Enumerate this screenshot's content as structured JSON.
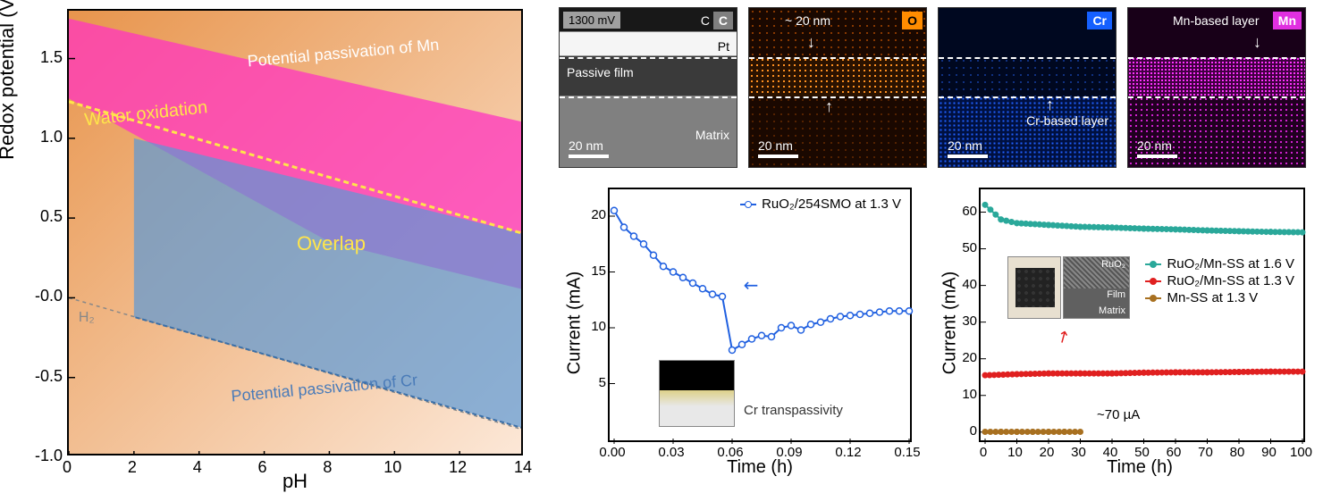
{
  "pourbaix": {
    "ylabel": "Redox potential (V)",
    "xlabel": "pH",
    "xlim": [
      0,
      14
    ],
    "ylim": [
      -1.0,
      1.8
    ],
    "yticks": [
      -1.0,
      -0.5,
      -0.0,
      0.5,
      1.0,
      1.5
    ],
    "xticks": [
      0,
      2,
      4,
      6,
      8,
      10,
      12,
      14
    ],
    "yticklabels": [
      "-1.0",
      "-0.5",
      "-0.0",
      "0.5",
      "1.0",
      "1.5"
    ],
    "xticklabels": [
      "0",
      "2",
      "4",
      "6",
      "8",
      "10",
      "12",
      "14"
    ],
    "background_gradient": [
      "#e8954d",
      "#fce8d8"
    ],
    "mn_region_color": "#ff34c0",
    "mn_region_opacity": 0.75,
    "mn_region_points": [
      [
        0,
        1.75
      ],
      [
        14,
        1.1
      ],
      [
        14,
        0.05
      ],
      [
        8,
        0.35
      ],
      [
        0,
        1.25
      ]
    ],
    "cr_region_color": "#5b98d6",
    "cr_region_opacity": 0.7,
    "cr_region_points": [
      [
        2,
        1.0
      ],
      [
        14,
        0.4
      ],
      [
        14,
        -0.82
      ],
      [
        2,
        -0.12
      ]
    ],
    "overlap_color": "#9b3fd8",
    "water_ox_line": {
      "p1": [
        0,
        1.23
      ],
      "p2": [
        14,
        0.4
      ],
      "color": "#ffe54a",
      "dash": "6,4",
      "width": 3
    },
    "h2_line": {
      "p1": [
        0,
        0.0
      ],
      "p2": [
        14,
        -0.83
      ],
      "color": "#888888",
      "dash": "4,4",
      "width": 1.5
    },
    "labels": {
      "mn": "Potential passivation of Mn",
      "cr": "Potential passivation of Cr",
      "water": "Water oxidation",
      "overlap": "Overlap",
      "h2": "H₂"
    },
    "label_colors": {
      "mn": "#ffffff",
      "cr": "#4a7bb8",
      "water": "#ffe54a",
      "overlap": "#ffe54a",
      "h2": "#888888"
    }
  },
  "eds": {
    "panels": [
      {
        "element": "C",
        "tag_bg": "#808080",
        "topleft_text": "1300 mV",
        "layers": [
          "C",
          "Pt",
          "Passive film",
          "Matrix"
        ],
        "scale": "20 nm"
      },
      {
        "element": "O",
        "tag_bg": "#ff8c00",
        "top_text": "~ 20 nm",
        "scale": "20 nm",
        "band_color": "#ff8c1a"
      },
      {
        "element": "Cr",
        "tag_bg": "#1560ff",
        "bottom_text": "Cr-based layer",
        "scale": "20 nm",
        "fill_color": "#1e5bd8"
      },
      {
        "element": "Mn",
        "tag_bg": "#e030e0",
        "top_text": "Mn-based layer",
        "scale": "20 nm",
        "fill_color": "#d428d4"
      }
    ]
  },
  "chart_b": {
    "ylabel": "Current (mA)",
    "xlabel": "Time (h)",
    "xlim": [
      0.0,
      0.15
    ],
    "ylim": [
      0,
      22
    ],
    "xticks": [
      0.0,
      0.03,
      0.06,
      0.09,
      0.12,
      0.15
    ],
    "yticks": [
      5,
      10,
      15,
      20
    ],
    "xticklabels": [
      "0.00",
      "0.03",
      "0.06",
      "0.09",
      "0.12",
      "0.15"
    ],
    "yticklabels": [
      "5",
      "10",
      "15",
      "20"
    ],
    "series": {
      "label": "RuO₂/254SMO at 1.3 V",
      "color": "#2060e0",
      "marker": "circle",
      "data": [
        [
          0,
          20.5
        ],
        [
          0.005,
          19
        ],
        [
          0.01,
          18.2
        ],
        [
          0.015,
          17.5
        ],
        [
          0.02,
          16.5
        ],
        [
          0.025,
          15.5
        ],
        [
          0.03,
          15
        ],
        [
          0.035,
          14.5
        ],
        [
          0.04,
          14
        ],
        [
          0.045,
          13.5
        ],
        [
          0.05,
          13
        ],
        [
          0.055,
          12.8
        ],
        [
          0.06,
          8
        ],
        [
          0.065,
          8.5
        ],
        [
          0.07,
          9
        ],
        [
          0.075,
          9.3
        ],
        [
          0.08,
          9.2
        ],
        [
          0.085,
          10
        ],
        [
          0.09,
          10.2
        ],
        [
          0.095,
          9.8
        ],
        [
          0.1,
          10.3
        ],
        [
          0.105,
          10.5
        ],
        [
          0.11,
          10.8
        ],
        [
          0.115,
          11
        ],
        [
          0.12,
          11.1
        ],
        [
          0.125,
          11.2
        ],
        [
          0.13,
          11.3
        ],
        [
          0.135,
          11.4
        ],
        [
          0.14,
          11.5
        ],
        [
          0.145,
          11.5
        ],
        [
          0.15,
          11.5
        ]
      ]
    },
    "annotation": "Cr transpassivity"
  },
  "chart_c": {
    "ylabel": "Current (mA)",
    "xlabel": "Time (h)",
    "xlim": [
      0,
      100
    ],
    "ylim": [
      -2,
      65
    ],
    "xticks": [
      0,
      10,
      20,
      30,
      40,
      50,
      60,
      70,
      80,
      90,
      100
    ],
    "yticks": [
      0,
      10,
      20,
      30,
      40,
      50,
      60
    ],
    "xticklabels": [
      "0",
      "10",
      "20",
      "30",
      "40",
      "50",
      "60",
      "70",
      "80",
      "90",
      "100"
    ],
    "yticklabels": [
      "0",
      "10",
      "20",
      "30",
      "40",
      "50",
      "60"
    ],
    "series": [
      {
        "label": "RuO₂/Mn-SS at 1.6 V",
        "color": "#2aa89a",
        "data": [
          [
            0,
            62
          ],
          [
            5,
            58
          ],
          [
            10,
            57
          ],
          [
            20,
            56.5
          ],
          [
            30,
            56
          ],
          [
            40,
            55.8
          ],
          [
            50,
            55.5
          ],
          [
            60,
            55.3
          ],
          [
            70,
            55
          ],
          [
            80,
            54.8
          ],
          [
            90,
            54.6
          ],
          [
            100,
            54.5
          ]
        ]
      },
      {
        "label": "RuO₂/Mn-SS at 1.3 V",
        "color": "#e02020",
        "data": [
          [
            0,
            15.5
          ],
          [
            10,
            15.8
          ],
          [
            20,
            16
          ],
          [
            30,
            16
          ],
          [
            40,
            16
          ],
          [
            50,
            16.2
          ],
          [
            60,
            16.3
          ],
          [
            70,
            16.3
          ],
          [
            80,
            16.4
          ],
          [
            90,
            16.5
          ],
          [
            100,
            16.5
          ]
        ]
      },
      {
        "label": "Mn-SS at 1.3 V",
        "color": "#a87020",
        "data": [
          [
            0,
            0.07
          ],
          [
            5,
            0.07
          ],
          [
            10,
            0.07
          ],
          [
            15,
            0.07
          ],
          [
            20,
            0.07
          ],
          [
            25,
            0.07
          ],
          [
            30,
            0.07
          ]
        ]
      }
    ],
    "annotation": "~70 µA",
    "inset_labels": [
      "RuO₂",
      "Film",
      "Matrix"
    ]
  }
}
